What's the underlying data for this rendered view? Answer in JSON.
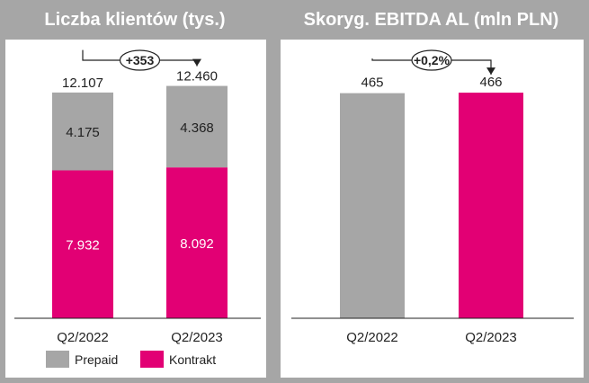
{
  "colors": {
    "frame": "#a6a6a6",
    "prepaid": "#a6a6a6",
    "kontrakt": "#e20074",
    "text": "#222222"
  },
  "chart_data": [
    {
      "type": "bar",
      "stacked": true,
      "title": "Liczba klientów (tys.)",
      "categories": [
        "Q2/2022",
        "Q2/2023"
      ],
      "series": [
        {
          "name": "Kontrakt",
          "values": [
            7.932,
            8.092
          ],
          "labels": [
            "7.932",
            "8.092"
          ],
          "color": "#e20074"
        },
        {
          "name": "Prepaid",
          "values": [
            4.175,
            4.368
          ],
          "labels": [
            "4.175",
            "4.368"
          ],
          "color": "#a6a6a6"
        }
      ],
      "totals": [
        "12.107",
        "12.460"
      ],
      "total_values": [
        12.107,
        12.46
      ],
      "change_label": "+353",
      "legend": [
        "Prepaid",
        "Kontrakt"
      ],
      "legend_position": "bottom",
      "ylim": [
        0,
        13.5
      ],
      "grid": false
    },
    {
      "type": "bar",
      "stacked": false,
      "title": "Skoryg. EBITDA AL (mln PLN)",
      "categories": [
        "Q2/2022",
        "Q2/2023"
      ],
      "values": [
        465,
        466
      ],
      "labels": [
        "465",
        "466"
      ],
      "colors": [
        "#a6a6a6",
        "#e20074"
      ],
      "change_label": "+0,2%",
      "ylim": [
        0,
        520
      ],
      "grid": false
    }
  ]
}
